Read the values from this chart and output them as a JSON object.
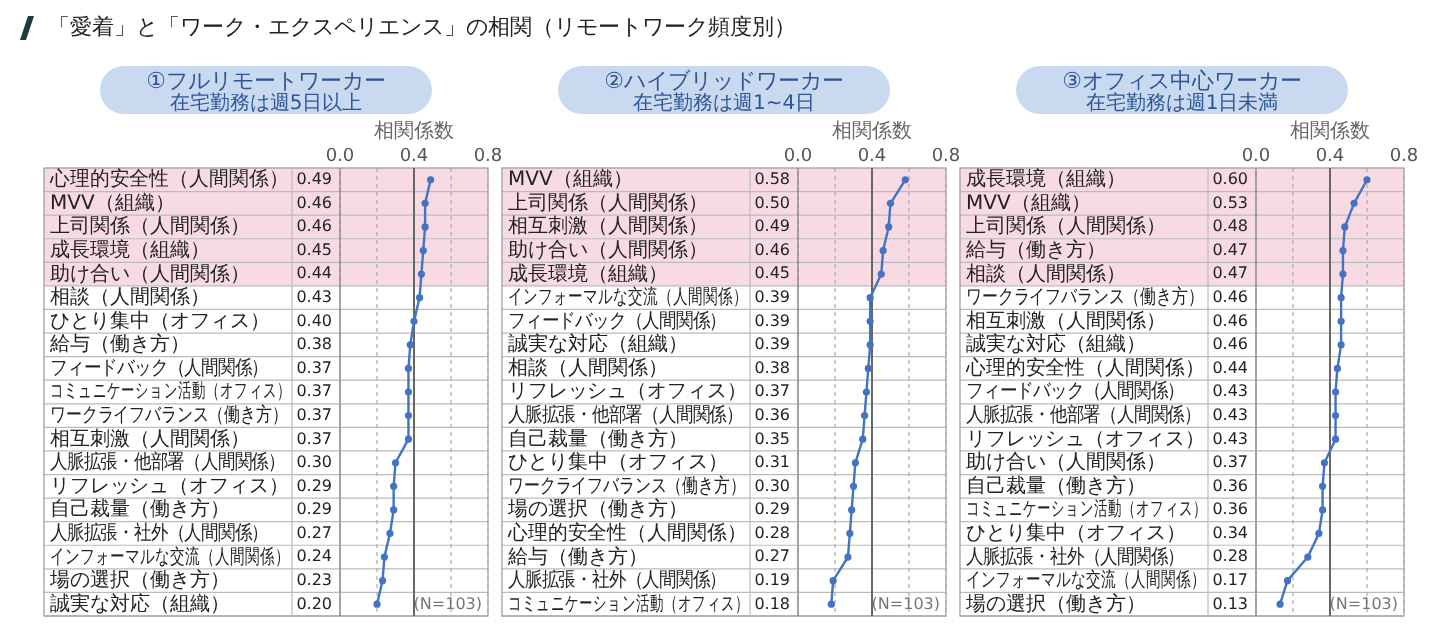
{
  "chart_data": [
    {
      "type": "line",
      "title": "①フルリモートワーカー",
      "subtitle": "在宅勤務は週5日以上",
      "xlabel": "相関係数",
      "orientation": "horizontal",
      "xlim": [
        0,
        0.8
      ],
      "xticks": [
        {
          "value": 0,
          "label": "0.0"
        },
        {
          "value": 0.2,
          "label": null
        },
        {
          "value": 0.4,
          "label": "0.4"
        },
        {
          "value": 0.6,
          "label": null
        },
        {
          "value": 0.8,
          "label": "0.8"
        }
      ],
      "grid": "x",
      "marker": "circle",
      "line_style": "solid",
      "categories": [
        "心理的安全性（人間関係）",
        "MVV（組織）",
        "上司関係（人間関係）",
        "成長環境（組織）",
        "助け合い（人間関係）",
        "相談（人間関係）",
        "ひとり集中（オフィス）",
        "給与（働き方）",
        "フィードバック（人間関係）",
        "コミュニケーション活動（オフィス）",
        "ワークライフバランス（働き方）",
        "相互刺激（人間関係）",
        "人脈拡張・他部署（人間関係）",
        "リフレッシュ（オフィス）",
        "自己裁量（働き方）",
        "人脈拡張・社外（人間関係）",
        "インフォーマルな交流（人間関係）",
        "場の選択（働き方）",
        "誠実な対応（組織）"
      ],
      "series": [
        {
          "color": "#4472c4",
          "values": [
            0.49,
            0.46,
            0.46,
            0.45,
            0.44,
            0.43,
            0.4,
            0.38,
            0.37,
            0.37,
            0.37,
            0.37,
            0.3,
            0.29,
            0.29,
            0.27,
            0.24,
            0.23,
            0.2
          ],
          "value_labels": [
            "0.49",
            "0.46",
            "0.46",
            "0.45",
            "0.44",
            "0.43",
            "0.40",
            "0.38",
            "0.37",
            "0.37",
            "0.37",
            "0.37",
            "0.30",
            "0.29",
            "0.29",
            "0.27",
            "0.24",
            "0.23",
            "0.20"
          ]
        }
      ],
      "bands": [
        {
          "axis": "y",
          "from": "心理的安全性（人間関係）",
          "to": "助け合い（人間関係）",
          "color": "#f8dbe2"
        }
      ],
      "ref_lines": [
        {
          "axis": "x",
          "value": 0.4,
          "color": "#666666"
        }
      ],
      "annotations": [
        "「愛着」と「ワーク・エクスペリエンス」の相関（リモートワーク頻度別）",
        "(N=103)"
      ]
    },
    {
      "type": "line",
      "title": "②ハイブリッドワーカー",
      "subtitle": "在宅勤務は週1~4日",
      "xlabel": "相関係数",
      "orientation": "horizontal",
      "xlim": [
        0,
        0.8
      ],
      "xticks": [
        {
          "value": 0,
          "label": "0.0"
        },
        {
          "value": 0.2,
          "label": null
        },
        {
          "value": 0.4,
          "label": "0.4"
        },
        {
          "value": 0.6,
          "label": null
        },
        {
          "value": 0.8,
          "label": "0.8"
        }
      ],
      "grid": "x",
      "marker": "circle",
      "line_style": "solid",
      "categories": [
        "MVV（組織）",
        "上司関係（人間関係）",
        "相互刺激（人間関係）",
        "助け合い（人間関係）",
        "成長環境（組織）",
        "インフォーマルな交流（人間関係）",
        "フィードバック（人間関係）",
        "誠実な対応（組織）",
        "相談（人間関係）",
        "リフレッシュ（オフィス）",
        "人脈拡張・他部署（人間関係）",
        "自己裁量（働き方）",
        "ひとり集中（オフィス）",
        "ワークライフバランス（働き方）",
        "場の選択（働き方）",
        "心理的安全性（人間関係）",
        "給与（働き方）",
        "人脈拡張・社外（人間関係）",
        "コミュニケーション活動（オフィス）"
      ],
      "series": [
        {
          "color": "#4472c4",
          "values": [
            0.58,
            0.5,
            0.49,
            0.46,
            0.45,
            0.39,
            0.39,
            0.39,
            0.38,
            0.37,
            0.36,
            0.35,
            0.31,
            0.3,
            0.29,
            0.28,
            0.27,
            0.19,
            0.18
          ],
          "value_labels": [
            "0.58",
            "0.50",
            "0.49",
            "0.46",
            "0.45",
            "0.39",
            "0.39",
            "0.39",
            "0.38",
            "0.37",
            "0.36",
            "0.35",
            "0.31",
            "0.30",
            "0.29",
            "0.28",
            "0.27",
            "0.19",
            "0.18"
          ]
        }
      ],
      "bands": [
        {
          "axis": "y",
          "from": "MVV（組織）",
          "to": "成長環境（組織）",
          "color": "#f8dbe2"
        }
      ],
      "ref_lines": [
        {
          "axis": "x",
          "value": 0.4,
          "color": "#666666"
        }
      ],
      "annotations": [
        "(N=103)"
      ]
    },
    {
      "type": "line",
      "title": "③オフィス中心ワーカー",
      "subtitle": "在宅勤務は週1日未満",
      "xlabel": "相関係数",
      "orientation": "horizontal",
      "xlim": [
        0,
        0.8
      ],
      "xticks": [
        {
          "value": 0,
          "label": "0.0"
        },
        {
          "value": 0.2,
          "label": null
        },
        {
          "value": 0.4,
          "label": "0.4"
        },
        {
          "value": 0.6,
          "label": null
        },
        {
          "value": 0.8,
          "label": "0.8"
        }
      ],
      "grid": "x",
      "marker": "circle",
      "line_style": "solid",
      "categories": [
        "成長環境（組織）",
        "MVV（組織）",
        "上司関係（人間関係）",
        "給与（働き方）",
        "相談（人間関係）",
        "ワークライフバランス（働き方）",
        "相互刺激（人間関係）",
        "誠実な対応（組織）",
        "心理的安全性（人間関係）",
        "フィードバック（人間関係）",
        "人脈拡張・他部署（人間関係）",
        "リフレッシュ（オフィス）",
        "助け合い（人間関係）",
        "自己裁量（働き方）",
        "コミュニケーション活動（オフィス）",
        "ひとり集中（オフィス）",
        "人脈拡張・社外（人間関係）",
        "インフォーマルな交流（人間関係）",
        "場の選択（働き方）"
      ],
      "series": [
        {
          "color": "#4472c4",
          "values": [
            0.6,
            0.53,
            0.48,
            0.47,
            0.47,
            0.46,
            0.46,
            0.46,
            0.44,
            0.43,
            0.43,
            0.43,
            0.37,
            0.36,
            0.36,
            0.34,
            0.28,
            0.17,
            0.13
          ],
          "value_labels": [
            "0.60",
            "0.53",
            "0.48",
            "0.47",
            "0.47",
            "0.46",
            "0.46",
            "0.46",
            "0.44",
            "0.43",
            "0.43",
            "0.43",
            "0.37",
            "0.36",
            "0.36",
            "0.34",
            "0.28",
            "0.17",
            "0.13"
          ]
        }
      ],
      "bands": [
        {
          "axis": "y",
          "from": "成長環境（組織）",
          "to": "相談（人間関係）",
          "color": "#f8dbe2"
        }
      ],
      "ref_lines": [
        {
          "axis": "x",
          "value": 0.4,
          "color": "#666666"
        }
      ],
      "annotations": [
        "(N=103)"
      ]
    }
  ]
}
